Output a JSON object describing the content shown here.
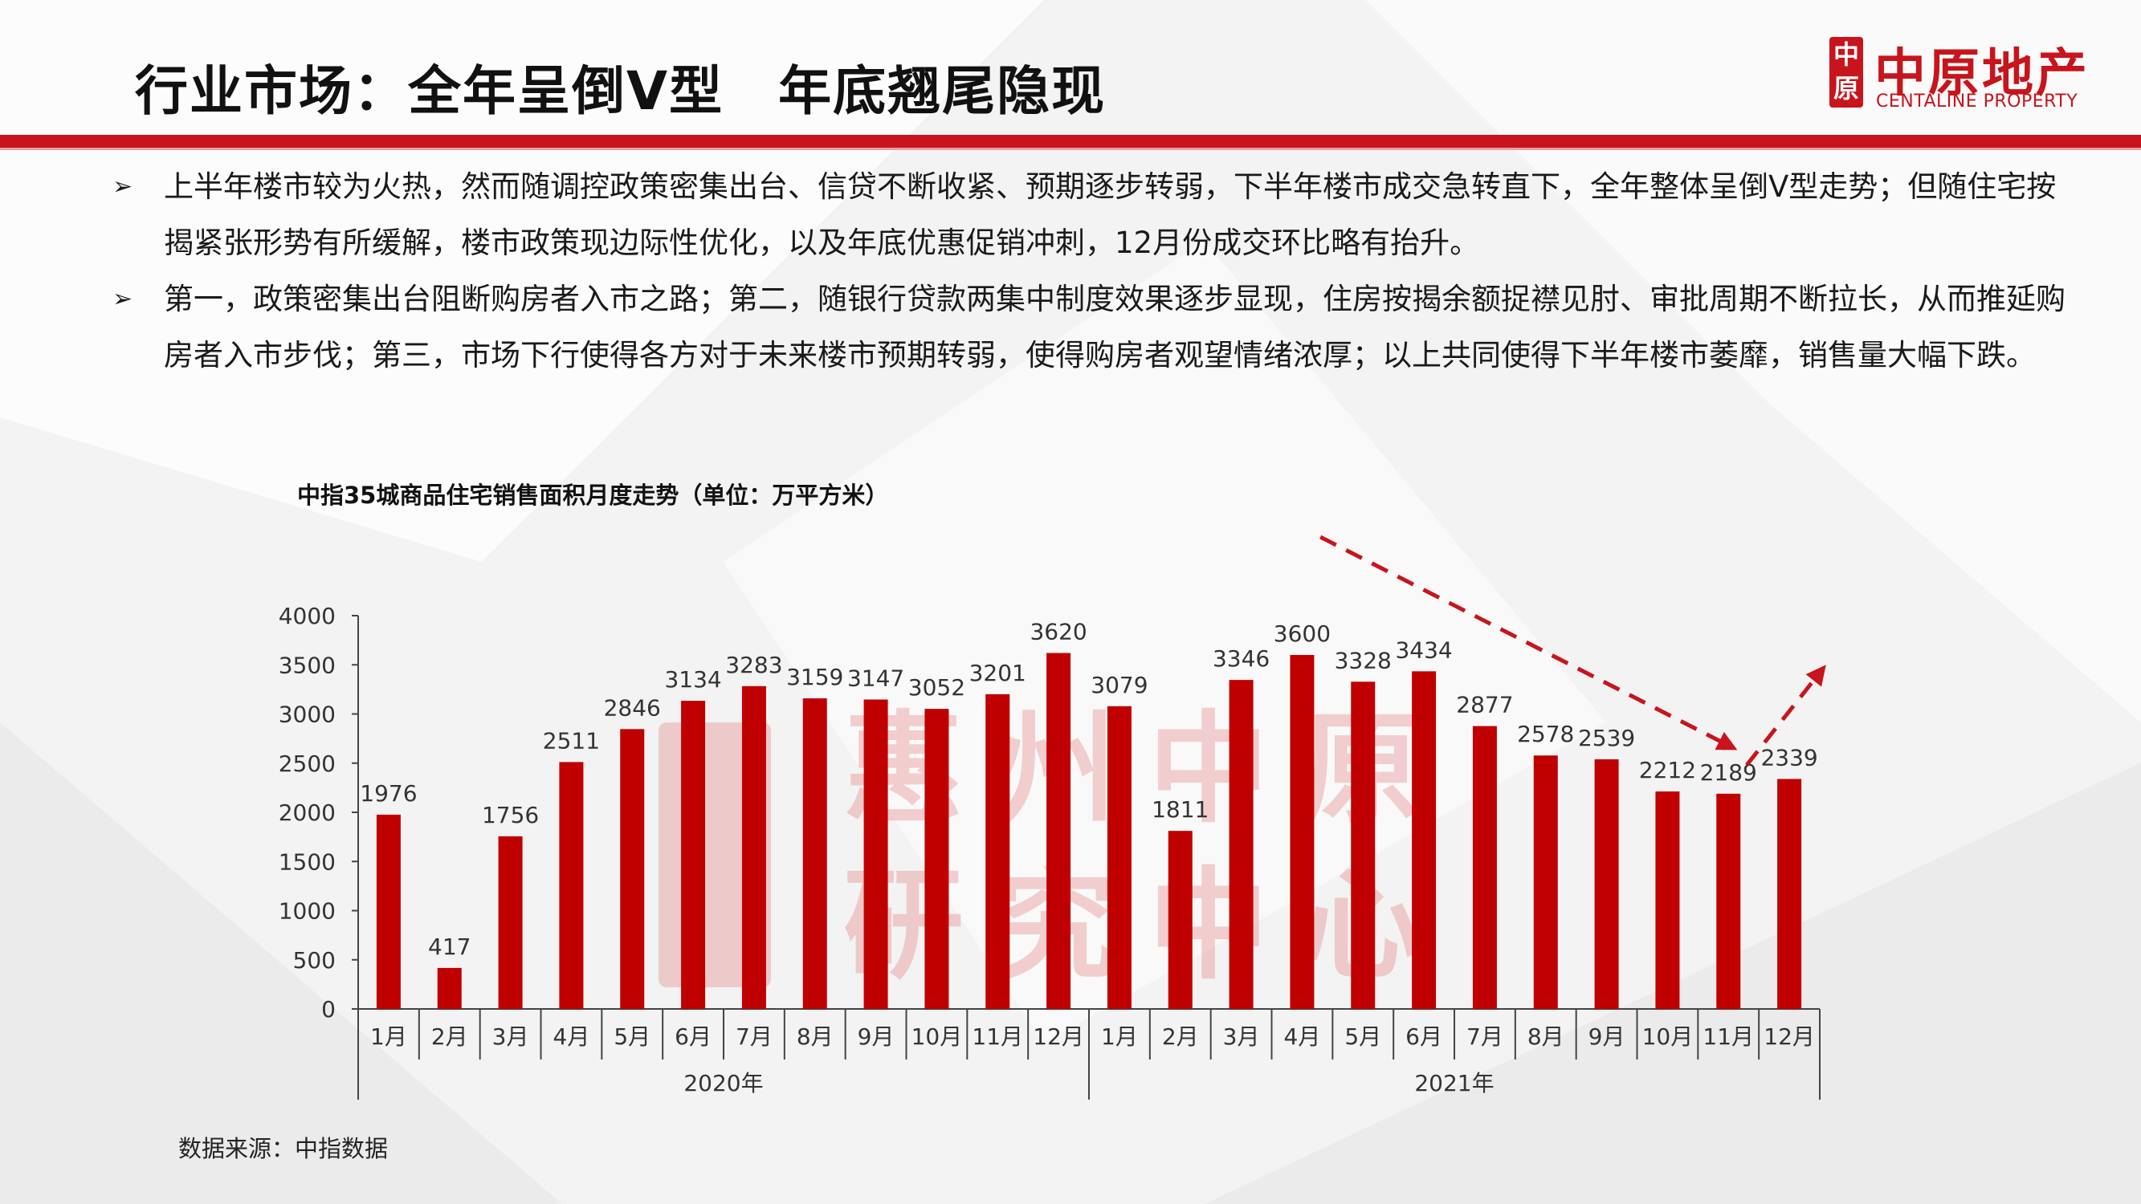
{
  "header": {
    "title": "行业市场：全年呈倒V型　年底翘尾隐现",
    "logo_cn": "中原地产",
    "logo_en": "CENTALINE PROPERTY",
    "logo_mark": [
      "中",
      "原"
    ]
  },
  "bullets": [
    {
      "marker": "➢",
      "text": "上半年楼市较为火热，然而随调控政策密集出台、信贷不断收紧、预期逐步转弱，下半年楼市成交急转直下，全年整体呈倒V型走势；但随住宅按揭紧张形势有所缓解，楼市政策现边际性优化，以及年底优惠促销冲刺，12月份成交环比略有抬升。"
    },
    {
      "marker": "➢",
      "text": "第一，政策密集出台阻断购房者入市之路；第二，随银行贷款两集中制度效果逐步显现，住房按揭余额捉襟见肘、审批周期不断拉长，从而推延购房者入市步伐；第三，市场下行使得各方对于未来楼市预期转弱，使得购房者观望情绪浓厚；以上共同使得下半年楼市萎靡，销售量大幅下跌。"
    }
  ],
  "source": "数据来源：中指数据",
  "colors": {
    "accent": "#c8141c",
    "bar": "#c00000",
    "text": "#1a1a1a"
  },
  "watermark": {
    "line1": "惠州中原",
    "line2": "研究中心"
  },
  "chart_data": {
    "type": "bar",
    "title": "中指35城商品住宅销售面积月度走势（单位：万平方米）",
    "categories": [
      "1月",
      "2月",
      "3月",
      "4月",
      "5月",
      "6月",
      "7月",
      "8月",
      "9月",
      "10月",
      "11月",
      "12月",
      "1月",
      "2月",
      "3月",
      "4月",
      "5月",
      "6月",
      "7月",
      "8月",
      "9月",
      "10月",
      "11月",
      "12月"
    ],
    "groups": [
      {
        "label": "2020年",
        "start": 0,
        "end": 11
      },
      {
        "label": "2021年",
        "start": 12,
        "end": 23
      }
    ],
    "values": [
      1976,
      417,
      1756,
      2511,
      2846,
      3134,
      3283,
      3159,
      3147,
      3052,
      3201,
      3620,
      3079,
      1811,
      3346,
      3600,
      3328,
      3434,
      2877,
      2578,
      2539,
      2212,
      2189,
      2339
    ],
    "ylim": [
      0,
      4000
    ],
    "yticks": [
      0,
      500,
      1000,
      1500,
      2000,
      2500,
      3000,
      3500,
      4000
    ],
    "xlabel": "",
    "ylabel": "",
    "grid": false,
    "annotations": [
      {
        "type": "dashed-arrow",
        "from_index": 15.3,
        "from_value": 4800,
        "to_index": 22,
        "to_value": 2680,
        "color": "#c8141c"
      },
      {
        "type": "dashed-arrow",
        "from_index": 22.3,
        "from_value": 2480,
        "to_index": 23.5,
        "to_value": 3420,
        "color": "#c8141c"
      }
    ]
  }
}
